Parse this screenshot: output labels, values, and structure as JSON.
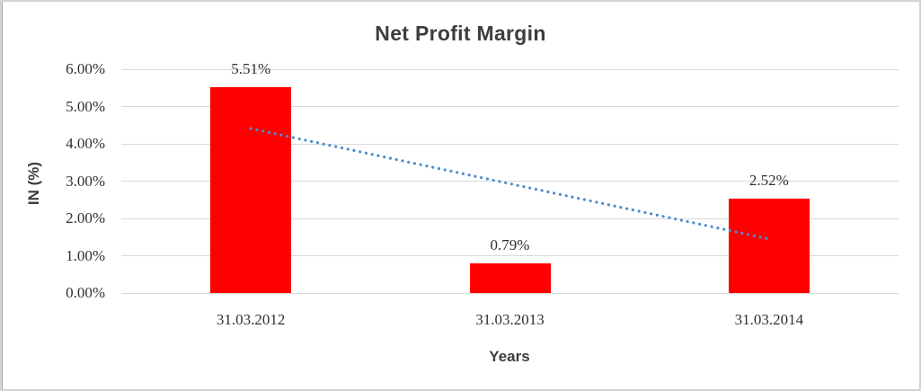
{
  "frame": {
    "border_color": "#d4d4d4"
  },
  "chart_data": {
    "type": "bar",
    "title": "Net Profit Margin",
    "xlabel": "Years",
    "ylabel": "IN (%)",
    "categories": [
      "31.03.2012",
      "31.03.2013",
      "31.03.2014"
    ],
    "values": [
      5.51,
      0.79,
      2.52
    ],
    "data_labels": [
      "5.51%",
      "0.79%",
      "2.52%"
    ],
    "ylim": [
      0,
      6
    ],
    "ytick_step": 1,
    "ytick_labels": [
      "0.00%",
      "1.00%",
      "2.00%",
      "3.00%",
      "4.00%",
      "5.00%",
      "6.00%"
    ],
    "grid": true,
    "legend": false,
    "bar_color": "#FF0000",
    "gridline_color": "#D9D9D9",
    "tick_text_color": "#303030",
    "title_color": "#3D3D3D",
    "trendline": {
      "type": "linear",
      "style": "dotted",
      "color": "#4E8CCB",
      "start_value": 4.41,
      "end_value": 1.45
    }
  }
}
